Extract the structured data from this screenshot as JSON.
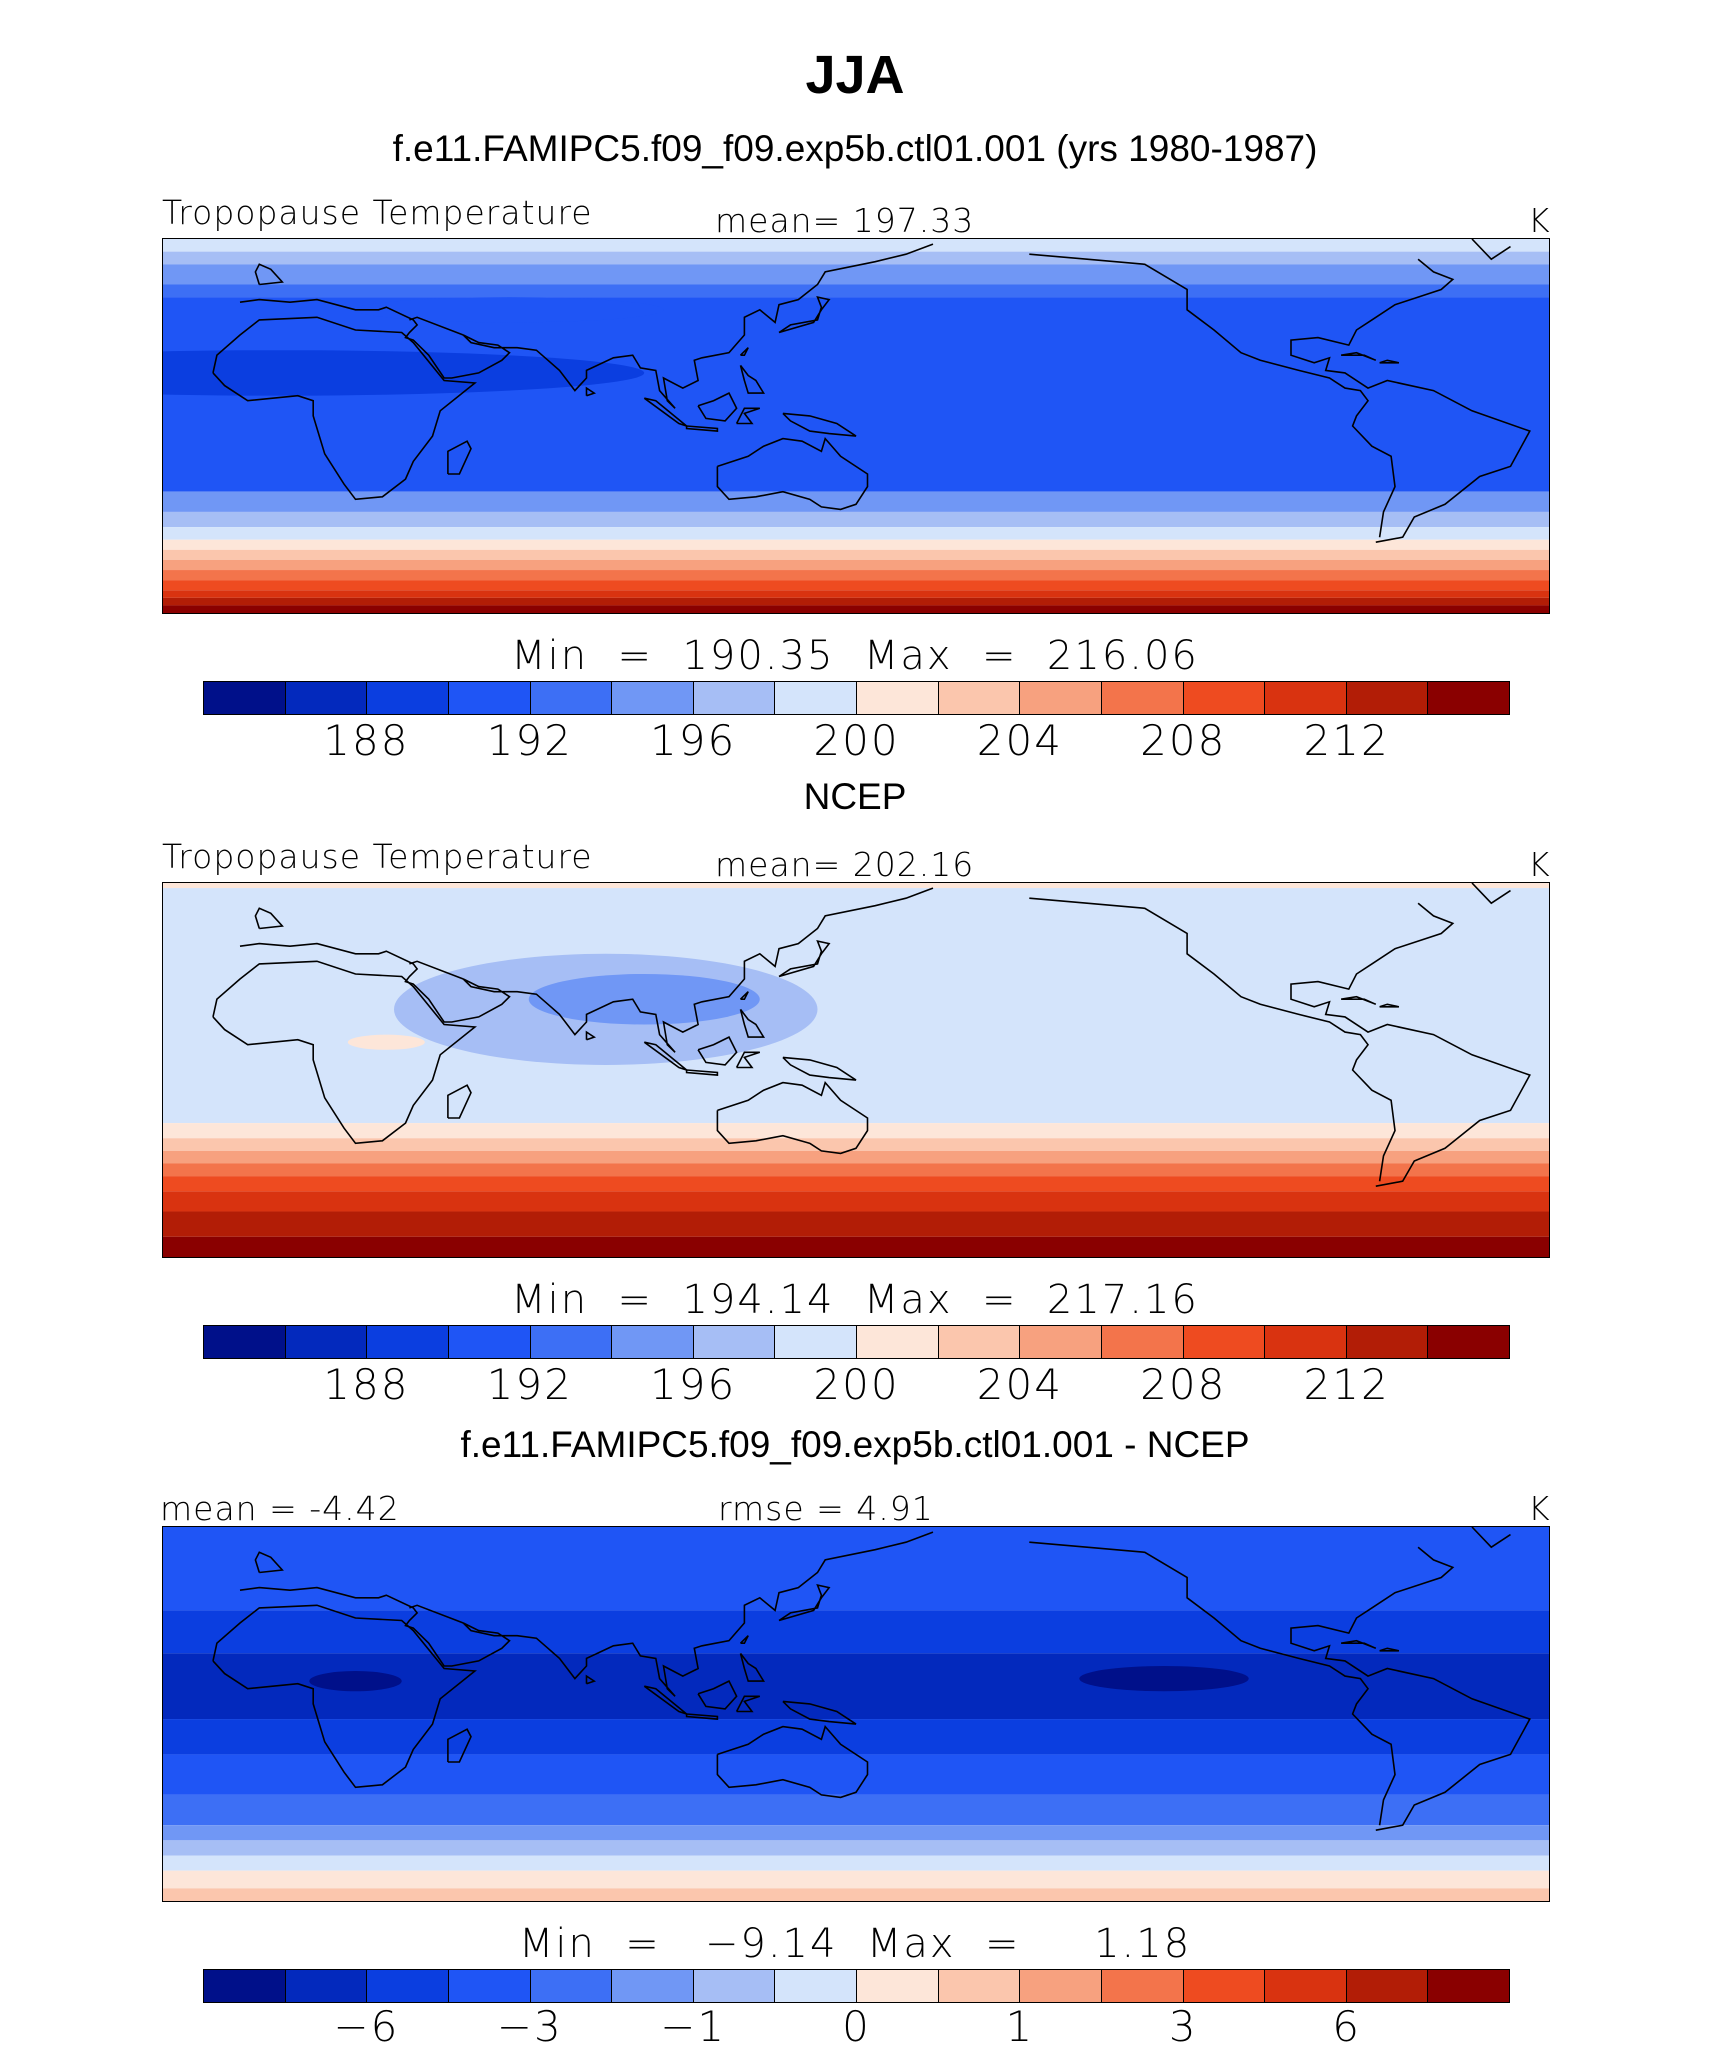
{
  "title": "JJA",
  "colors": {
    "scale": [
      "#00108a",
      "#0329bd",
      "#0b3ee0",
      "#1f55f5",
      "#3d6ff5",
      "#7097f5",
      "#a6bef5",
      "#d4e4fb",
      "#fde6d9",
      "#fbc6ad",
      "#f7a17f",
      "#f3744b",
      "#ee4b20",
      "#d93310",
      "#b21d06",
      "#8a0000"
    ]
  },
  "panels": [
    {
      "title": "f.e11.FAMIPC5.f09_f09.exp5b.ctl01.001 (yrs 1980-1987)",
      "left_label": "Tropopause Temperature",
      "center_label": "mean= 197.33",
      "units": "K",
      "minmax": "Min  =  190.35  Max  =  216.06",
      "ticks": [
        "188",
        "192",
        "196",
        "200",
        "204",
        "208",
        "212"
      ],
      "tick_positions": [
        2,
        4,
        6,
        8,
        10,
        12,
        14
      ],
      "bands": [
        {
          "lat": 90,
          "c": 11
        },
        {
          "lat": 82,
          "c": 10
        },
        {
          "lat": 77,
          "c": 9
        },
        {
          "lat": 72,
          "c": 8
        },
        {
          "lat": 68,
          "c": 7
        },
        {
          "lat": 63,
          "c": 6
        },
        {
          "lat": 58,
          "c": 5
        },
        {
          "lat": 50,
          "c": 4
        },
        {
          "lat": 45,
          "c": 3
        },
        {
          "lat": -32,
          "c": 5
        },
        {
          "lat": -40,
          "c": 6
        },
        {
          "lat": -46,
          "c": 7
        },
        {
          "lat": -51,
          "c": 8
        },
        {
          "lat": -55,
          "c": 9
        },
        {
          "lat": -59,
          "c": 10
        },
        {
          "lat": -63,
          "c": 11
        },
        {
          "lat": -67,
          "c": 12
        },
        {
          "lat": -71,
          "c": 13
        },
        {
          "lat": -74,
          "c": 14
        },
        {
          "lat": -77,
          "c": 15
        }
      ],
      "blobs": [
        {
          "lon": 0,
          "lat": 15,
          "rx": 95,
          "ry": 9,
          "c": 2
        },
        {
          "lon": 125,
          "lat": 78,
          "rx": 22,
          "ry": 10,
          "c": 12
        },
        {
          "lon": 60,
          "lat": 40,
          "rx": 40,
          "ry": 5,
          "c": 3
        }
      ]
    },
    {
      "title": "NCEP",
      "left_label": "Tropopause Temperature",
      "center_label": "mean= 202.16",
      "units": "K",
      "minmax": "Min  =  194.14  Max  =  217.16",
      "ticks": [
        "188",
        "192",
        "196",
        "200",
        "204",
        "208",
        "212"
      ],
      "tick_positions": [
        2,
        4,
        6,
        8,
        10,
        12,
        14
      ],
      "bands": [
        {
          "lat": 90,
          "c": 11
        },
        {
          "lat": 82,
          "c": 10
        },
        {
          "lat": 76,
          "c": 9
        },
        {
          "lat": 71,
          "c": 8
        },
        {
          "lat": 66,
          "c": 7
        },
        {
          "lat": -27,
          "c": 8
        },
        {
          "lat": -33,
          "c": 9
        },
        {
          "lat": -38,
          "c": 10
        },
        {
          "lat": -43,
          "c": 11
        },
        {
          "lat": -48,
          "c": 12
        },
        {
          "lat": -54,
          "c": 13
        },
        {
          "lat": -62,
          "c": 14
        },
        {
          "lat": -72,
          "c": 15
        }
      ],
      "blobs": [
        {
          "lon": 85,
          "lat": 18,
          "rx": 55,
          "ry": 22,
          "c": 6
        },
        {
          "lon": 95,
          "lat": 22,
          "rx": 30,
          "ry": 10,
          "c": 5
        },
        {
          "lon": 28,
          "lat": 5,
          "rx": 10,
          "ry": 3,
          "c": 8
        },
        {
          "lon": 145,
          "lat": 78,
          "rx": 20,
          "ry": 8,
          "c": 12
        }
      ]
    },
    {
      "title": "f.e11.FAMIPC5.f09_f09.exp5b.ctl01.001 - NCEP",
      "left_label": "mean =   -4.42",
      "center_label": "rmse =    4.91",
      "units": "K",
      "minmax": "Min  =   −9.14  Max  =     1.18",
      "ticks": [
        "−6",
        "−3",
        "−1",
        "0",
        "1",
        "3",
        "6"
      ],
      "tick_positions": [
        2,
        4,
        6,
        8,
        10,
        12,
        14
      ],
      "bands": [
        {
          "lat": 90,
          "c": 4
        },
        {
          "lat": 70,
          "c": 3
        },
        {
          "lat": 35,
          "c": 2
        },
        {
          "lat": 18,
          "c": 1
        },
        {
          "lat": -8,
          "c": 2
        },
        {
          "lat": -22,
          "c": 3
        },
        {
          "lat": -38,
          "c": 4
        },
        {
          "lat": -50,
          "c": 5
        },
        {
          "lat": -56,
          "c": 6
        },
        {
          "lat": -62,
          "c": 7
        },
        {
          "lat": -68,
          "c": 8
        },
        {
          "lat": -75,
          "c": 9
        }
      ],
      "blobs": [
        {
          "lon": -130,
          "lat": 8,
          "rx": 22,
          "ry": 5,
          "c": 0
        },
        {
          "lon": 20,
          "lat": 7,
          "rx": 12,
          "ry": 4,
          "c": 0
        },
        {
          "lon": 125,
          "lat": 75,
          "rx": 18,
          "ry": 6,
          "c": 6
        },
        {
          "lon": 130,
          "lat": 80,
          "rx": 8,
          "ry": 3,
          "c": 7
        }
      ]
    }
  ]
}
